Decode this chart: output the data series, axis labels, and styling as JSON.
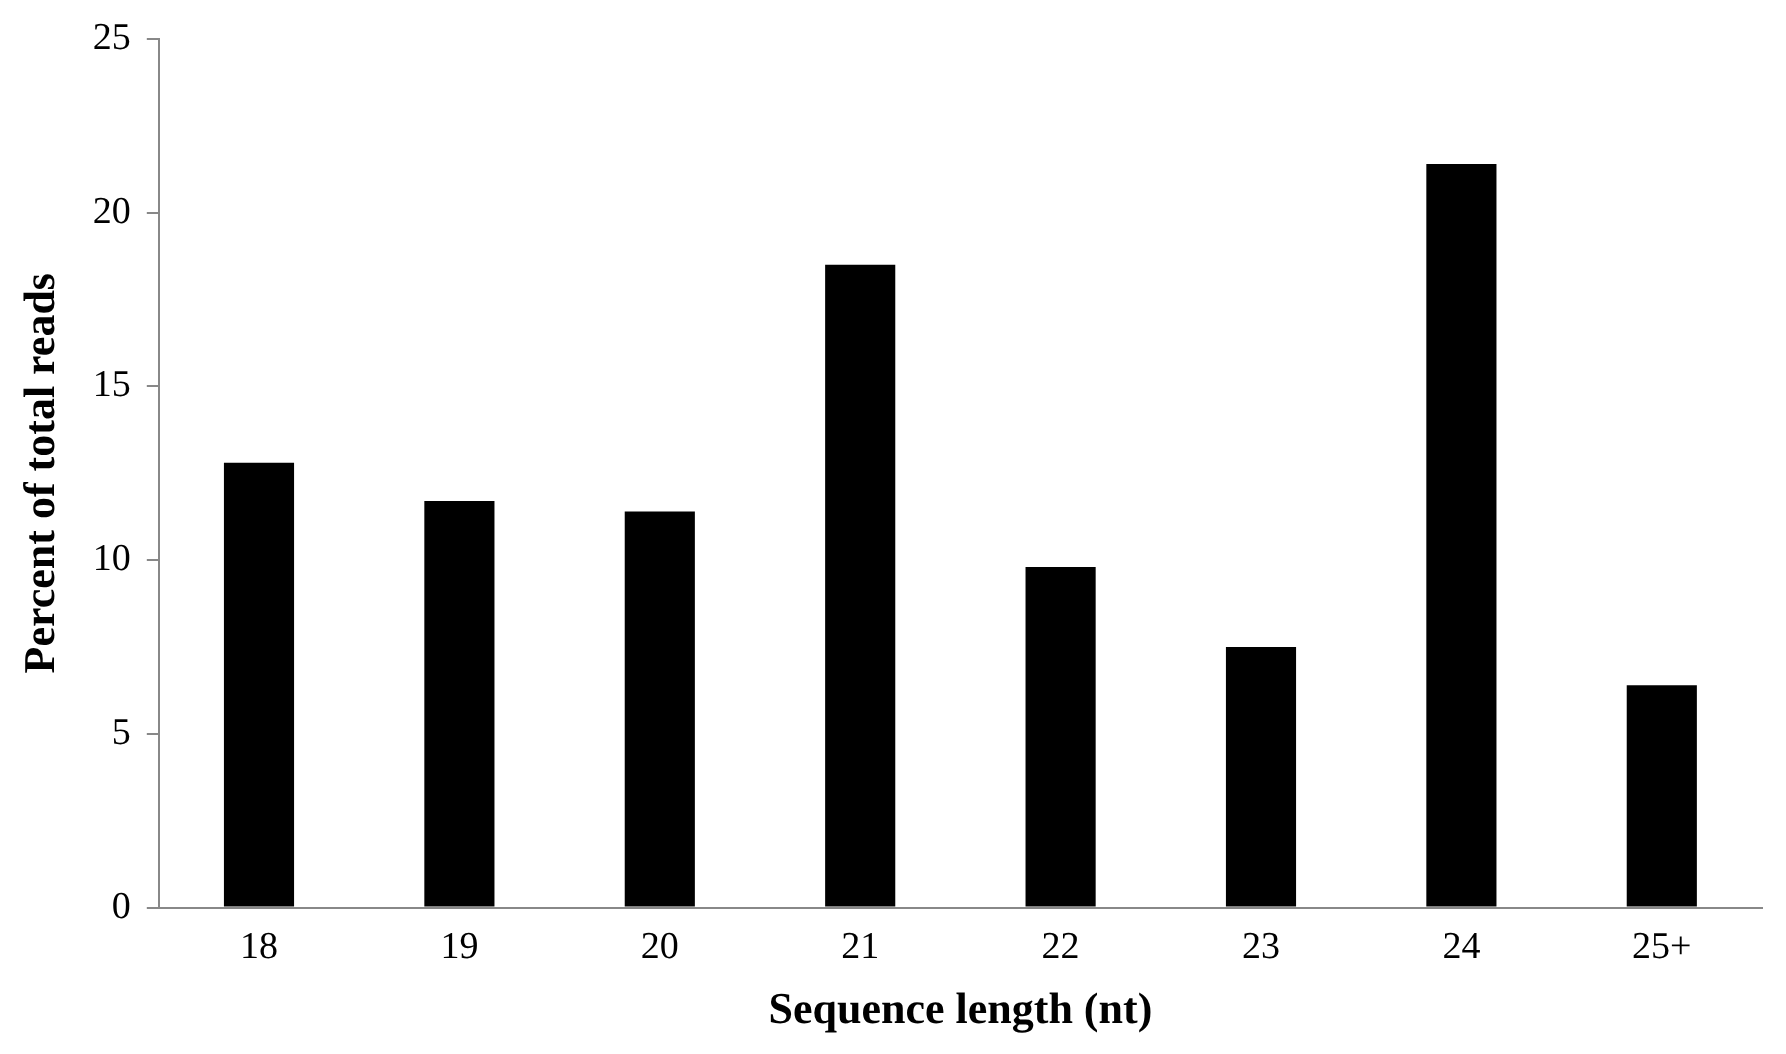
{
  "chart_data": {
    "type": "bar",
    "xlabel": "Sequence length (nt)",
    "ylabel": "Percent of total reads",
    "categories": [
      "18",
      "19",
      "20",
      "21",
      "22",
      "23",
      "24",
      "25+"
    ],
    "values": [
      12.8,
      11.7,
      11.4,
      18.5,
      9.8,
      7.5,
      21.4,
      6.4
    ],
    "color": "#000000",
    "ylim": [
      0,
      25
    ],
    "yticks": [
      0,
      5,
      10,
      15,
      20,
      25
    ],
    "grid": false,
    "legend": false
  }
}
